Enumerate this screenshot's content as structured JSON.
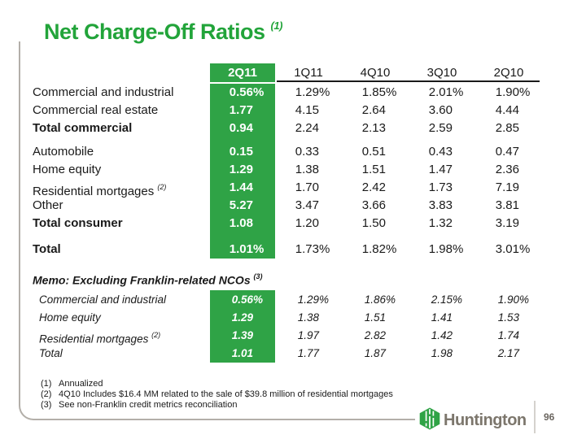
{
  "title": {
    "text": "Net Charge-Off Ratios",
    "footnote_ref": "(1)"
  },
  "table": {
    "columns": [
      "2Q11",
      "1Q11",
      "4Q10",
      "3Q10",
      "2Q10"
    ],
    "groups": [
      {
        "rows": [
          {
            "label": "Commercial and industrial",
            "values": [
              "0.56%",
              "1.29%",
              "1.85%",
              "2.01%",
              "1.90%"
            ]
          },
          {
            "label": "Commercial real estate",
            "values": [
              "1.77",
              "4.15",
              "2.64",
              "3.60",
              "4.44"
            ]
          },
          {
            "label": "Total commercial",
            "bold": true,
            "values": [
              "0.94",
              "2.24",
              "2.13",
              "2.59",
              "2.85"
            ]
          }
        ]
      },
      {
        "rows": [
          {
            "label": "Automobile",
            "values": [
              "0.15",
              "0.33",
              "0.51",
              "0.43",
              "0.47"
            ]
          },
          {
            "label": "Home equity",
            "values": [
              "1.29",
              "1.38",
              "1.51",
              "1.47",
              "2.36"
            ]
          },
          {
            "label": "Residential mortgages",
            "sup": "(2)",
            "values": [
              "1.44",
              "1.70",
              "2.42",
              "1.73",
              "7.19"
            ]
          },
          {
            "label": "Other",
            "values": [
              "5.27",
              "3.47",
              "3.66",
              "3.83",
              "3.81"
            ]
          },
          {
            "label": "Total consumer",
            "bold": true,
            "values": [
              "1.08",
              "1.20",
              "1.50",
              "1.32",
              "3.19"
            ]
          }
        ]
      },
      {
        "rows": [
          {
            "label": "Total",
            "bold": true,
            "values": [
              "1.01%",
              "1.73%",
              "1.82%",
              "1.98%",
              "3.01%"
            ]
          }
        ]
      }
    ]
  },
  "memo": {
    "heading": "Memo: Excluding Franklin-related NCOs",
    "heading_sup": "(3)",
    "rows": [
      {
        "label": "Commercial and industrial",
        "values": [
          "0.56%",
          "1.29%",
          "1.86%",
          "2.15%",
          "1.90%"
        ]
      },
      {
        "label": "Home equity",
        "values": [
          "1.29",
          "1.38",
          "1.51",
          "1.41",
          "1.53"
        ]
      },
      {
        "label": "Residential mortgages",
        "sup": "(2)",
        "values": [
          "1.39",
          "1.97",
          "2.82",
          "1.42",
          "1.74"
        ]
      },
      {
        "label": "Total",
        "values": [
          "1.01",
          "1.77",
          "1.87",
          "1.98",
          "2.17"
        ]
      }
    ]
  },
  "footnotes": [
    {
      "num": "(1)",
      "text": "Annualized"
    },
    {
      "num": "(2)",
      "text": "4Q10 Includes $16.4 MM related to the sale of $39.8 million of residential mortgages"
    },
    {
      "num": "(3)",
      "text": "See non-Franklin credit metrics reconciliation"
    }
  ],
  "footer": {
    "brand": "Huntington",
    "page_number": "96"
  },
  "colors": {
    "title_green": "#22a43a",
    "table_green": "#2fa346",
    "logo_green": "#2fa346",
    "logo_gray": "#7c766c",
    "frame_gray": "#b3afa9",
    "text_black": "#1a1a1a"
  }
}
